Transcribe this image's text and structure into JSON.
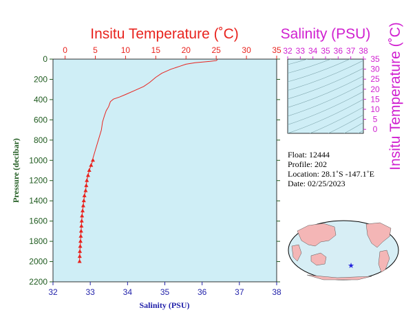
{
  "chart_data": [
    {
      "type": "line",
      "title": "Insitu Temperature (˚C)",
      "xlabel": "Salinity (PSU)",
      "ylabel": "Pressure (decibar)",
      "temperature_axis": {
        "ticks": [
          "0",
          "5",
          "10",
          "15",
          "20",
          "25",
          "30",
          "35"
        ],
        "range": [
          -2,
          35
        ]
      },
      "salinity_axis": {
        "ticks": [
          "32",
          "33",
          "34",
          "35",
          "36",
          "37",
          "38"
        ],
        "range": [
          32,
          38
        ]
      },
      "pressure_axis": {
        "ticks": [
          "0",
          "200",
          "400",
          "600",
          "800",
          "1000",
          "1200",
          "1400",
          "1600",
          "1800",
          "2000",
          "2200"
        ],
        "range": [
          0,
          2200
        ],
        "inverted": true
      },
      "series": [
        {
          "name": "",
          "color": "#e8231e",
          "variable": "temperature",
          "points": [
            {
              "t": 25.2,
              "p": 5
            },
            {
              "t": 25.0,
              "p": 15
            },
            {
              "t": 24.0,
              "p": 22
            },
            {
              "t": 21.5,
              "p": 35
            },
            {
              "t": 20.0,
              "p": 50
            },
            {
              "t": 19.0,
              "p": 70
            },
            {
              "t": 17.5,
              "p": 100
            },
            {
              "t": 16.0,
              "p": 140
            },
            {
              "t": 15.0,
              "p": 180
            },
            {
              "t": 14.0,
              "p": 230
            },
            {
              "t": 13.0,
              "p": 270
            },
            {
              "t": 11.5,
              "p": 310
            },
            {
              "t": 10.0,
              "p": 350
            },
            {
              "t": 9.0,
              "p": 375
            },
            {
              "t": 8.0,
              "p": 395
            },
            {
              "t": 7.5,
              "p": 420
            },
            {
              "t": 7.2,
              "p": 470
            },
            {
              "t": 6.8,
              "p": 510
            },
            {
              "t": 6.5,
              "p": 560
            },
            {
              "t": 6.2,
              "p": 620
            },
            {
              "t": 6.0,
              "p": 700
            },
            {
              "t": 5.5,
              "p": 800
            },
            {
              "t": 5.0,
              "p": 900
            },
            {
              "t": 4.6,
              "p": 980
            }
          ]
        },
        {
          "name": "",
          "color": "#e8231e",
          "variable": "temperature",
          "marker": "triangle",
          "points": [
            {
              "t": 4.6,
              "p": 1000
            },
            {
              "t": 4.3,
              "p": 1050
            },
            {
              "t": 4.0,
              "p": 1100
            },
            {
              "t": 3.8,
              "p": 1150
            },
            {
              "t": 3.6,
              "p": 1200
            },
            {
              "t": 3.5,
              "p": 1250
            },
            {
              "t": 3.4,
              "p": 1300
            },
            {
              "t": 3.2,
              "p": 1350
            },
            {
              "t": 3.1,
              "p": 1400
            },
            {
              "t": 3.0,
              "p": 1450
            },
            {
              "t": 2.9,
              "p": 1500
            },
            {
              "t": 2.8,
              "p": 1550
            },
            {
              "t": 2.75,
              "p": 1600
            },
            {
              "t": 2.7,
              "p": 1650
            },
            {
              "t": 2.65,
              "p": 1700
            },
            {
              "t": 2.6,
              "p": 1750
            },
            {
              "t": 2.55,
              "p": 1800
            },
            {
              "t": 2.5,
              "p": 1850
            },
            {
              "t": 2.45,
              "p": 1900
            },
            {
              "t": 2.42,
              "p": 1950
            },
            {
              "t": 2.4,
              "p": 2000
            }
          ]
        }
      ]
    },
    {
      "type": "scatter",
      "title": "Salinity (PSU)",
      "ylabel": "Insitu Temperature (˚C)",
      "x_ticks": [
        "32",
        "33",
        "34",
        "35",
        "36",
        "37",
        "38"
      ],
      "y_ticks": [
        "0",
        "5",
        "10",
        "15",
        "20",
        "25",
        "30",
        "35"
      ],
      "xlim": [
        32,
        38
      ],
      "ylim": [
        -2,
        35
      ]
    }
  ],
  "float_info": {
    "float_line": "Float:  12444",
    "profile_line": "Profile:  202",
    "location_line": "Location:  28.1˚S  -147.1˚E",
    "date_line": "Date:  02/25/2023"
  },
  "map": {
    "marker": "★",
    "marker_color": "#2222dd",
    "ocean_color": "#d7eef5",
    "land_color": "#f4b6b6"
  },
  "colors": {
    "temperature": "#e8231e",
    "salinity": "#d020d0",
    "pressure": "#1e5a1e",
    "salinity_axis": "#2222aa",
    "plot_bg": "#cfeef6"
  }
}
